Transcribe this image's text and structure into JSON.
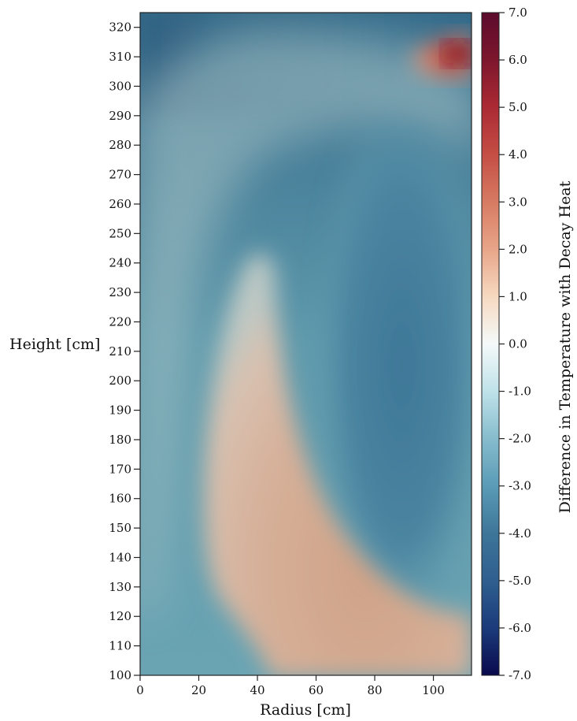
{
  "chart_data": {
    "type": "heatmap",
    "xlabel": "Radius [cm]",
    "ylabel": "Height [cm]",
    "colorbar_label": "Difference in Temperature with Decay Heat",
    "xlim": [
      0,
      113
    ],
    "ylim": [
      100,
      325
    ],
    "x_ticks": [
      0,
      20,
      40,
      60,
      80,
      100
    ],
    "y_ticks": [
      100,
      110,
      120,
      130,
      140,
      150,
      160,
      170,
      180,
      190,
      200,
      210,
      220,
      230,
      240,
      250,
      260,
      270,
      280,
      290,
      300,
      310,
      320
    ],
    "color_range": [
      -7.0,
      7.0
    ],
    "color_ticks": [
      "7.0",
      "6.0",
      "5.0",
      "4.0",
      "3.0",
      "2.0",
      "1.0",
      "0.0",
      "-1.0",
      "-2.0",
      "-3.0",
      "-4.0",
      "-5.0",
      "-6.0",
      "-7.0"
    ],
    "colormap_stops": [
      {
        "value": -7.0,
        "color": "#0a0a4d"
      },
      {
        "value": -6.0,
        "color": "#1b3b7a"
      },
      {
        "value": -5.0,
        "color": "#2f5f8f"
      },
      {
        "value": -4.0,
        "color": "#3d7599"
      },
      {
        "value": -3.0,
        "color": "#5a9bb6"
      },
      {
        "value": -2.0,
        "color": "#86bccd"
      },
      {
        "value": -1.0,
        "color": "#bfe2e9"
      },
      {
        "value": 0.0,
        "color": "#f4f9f9"
      },
      {
        "value": 1.0,
        "color": "#f6d9c1"
      },
      {
        "value": 2.0,
        "color": "#e8a588"
      },
      {
        "value": 3.0,
        "color": "#d77b63"
      },
      {
        "value": 4.0,
        "color": "#c44e44"
      },
      {
        "value": 5.0,
        "color": "#ab2a34"
      },
      {
        "value": 6.0,
        "color": "#7d162d"
      },
      {
        "value": 7.0,
        "color": "#5c0b2d"
      }
    ],
    "regions": [
      {
        "description": "cool band",
        "value": -3.5
      },
      {
        "description": "warm plume",
        "value": 0.9
      },
      {
        "description": "cold core",
        "value": -4.2
      },
      {
        "description": "hot spot",
        "value": 6.0
      }
    ]
  }
}
